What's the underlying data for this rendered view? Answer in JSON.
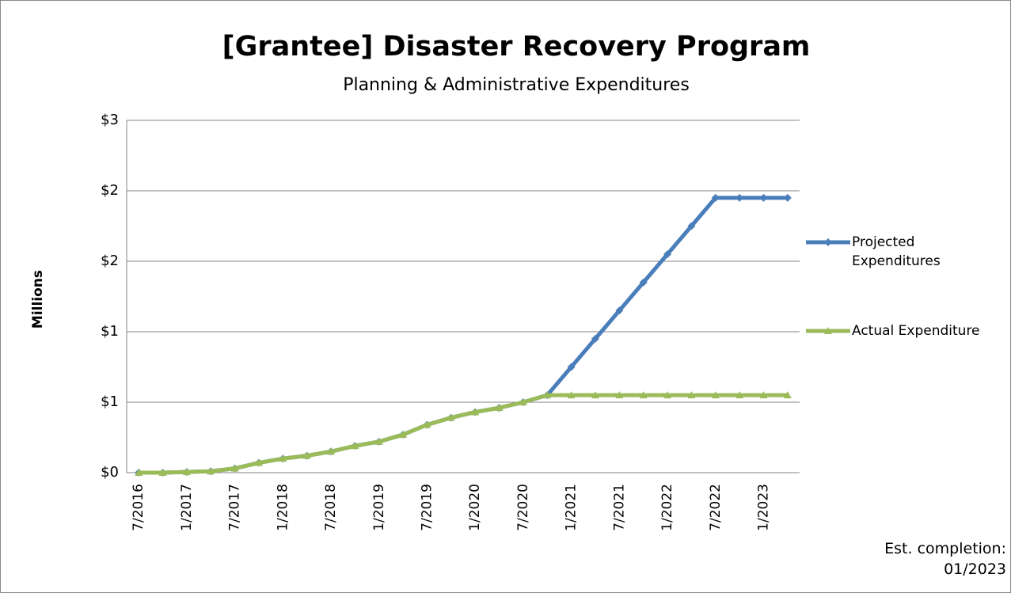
{
  "chart_data": {
    "type": "line",
    "title": "[Grantee] Disaster Recovery Program",
    "subtitle": "Planning & Administrative Expenditures",
    "y_label": "Millions",
    "annotation": "Est. completion: 01/2023",
    "categories": [
      "7/2016",
      null,
      "1/2017",
      null,
      "7/2017",
      null,
      "1/2018",
      null,
      "7/2018",
      null,
      "1/2019",
      null,
      "7/2019",
      null,
      "1/2020",
      null,
      "7/2020",
      null,
      "1/2021",
      null,
      "7/2021",
      null,
      "1/2022",
      null,
      "7/2022",
      null,
      "1/2023",
      null
    ],
    "series": [
      {
        "name": "Projected Expenditures",
        "color": "#4a7ebb",
        "marker": "diamond",
        "values": [
          0,
          0,
          0.005,
          0.01,
          0.03,
          0.07,
          0.1,
          0.12,
          0.15,
          0.19,
          0.22,
          0.27,
          0.34,
          0.39,
          0.43,
          0.46,
          0.5,
          0.55,
          0.75,
          0.95,
          1.15,
          1.35,
          1.55,
          1.75,
          1.95,
          1.95,
          1.95,
          1.95
        ]
      },
      {
        "name": "Actual Expenditure",
        "color": "#9bbb59",
        "marker": "triangle",
        "values": [
          0,
          0,
          0.005,
          0.01,
          0.03,
          0.07,
          0.1,
          0.12,
          0.15,
          0.19,
          0.22,
          0.27,
          0.34,
          0.39,
          0.43,
          0.46,
          0.5,
          0.55,
          0.55,
          0.55,
          0.55,
          0.55,
          0.55,
          0.55,
          0.55,
          0.55,
          0.55,
          0.55
        ]
      }
    ],
    "ylim": [
      0,
      2.5
    ],
    "yticks": [
      {
        "value": 0,
        "label": "$0"
      },
      {
        "value": 0.5,
        "label": "$1"
      },
      {
        "value": 1,
        "label": "$1"
      },
      {
        "value": 1.5,
        "label": "$2"
      },
      {
        "value": 2,
        "label": "$2"
      },
      {
        "value": 2.5,
        "label": "$3"
      }
    ],
    "grid": true,
    "legend": "right"
  }
}
